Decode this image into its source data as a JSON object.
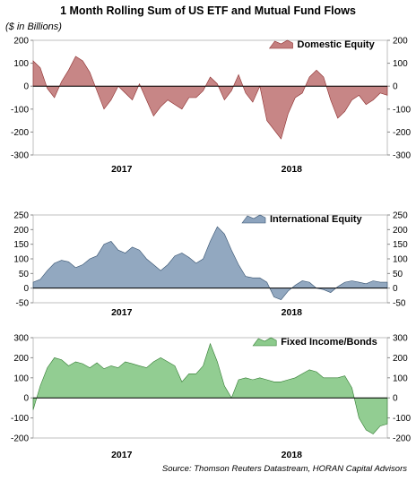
{
  "title": "1 Month Rolling Sum of US ETF and Mutual Fund Flows",
  "subtitle": "($ in Billions)",
  "source": "Source: Thomson Reuters Datastream, HORAN Capital Advisors",
  "chart_data": [
    {
      "type": "area",
      "series": [
        {
          "name": "Domestic Equity",
          "color": "#c47f7f",
          "x": [
            0,
            2,
            4,
            6,
            8,
            10,
            12,
            14,
            16,
            18,
            20,
            22,
            24,
            26,
            28,
            30,
            32,
            34,
            36,
            38,
            40,
            42,
            44,
            46,
            48,
            50,
            52,
            54,
            56,
            58,
            60,
            62,
            64,
            66,
            68,
            70,
            72,
            74,
            76,
            78,
            80,
            82,
            84,
            86,
            88,
            90,
            92,
            94,
            96,
            98,
            100
          ],
          "values": [
            110,
            80,
            -10,
            -50,
            20,
            70,
            130,
            110,
            60,
            -20,
            -100,
            -60,
            0,
            -30,
            -60,
            10,
            -60,
            -130,
            -90,
            -60,
            -80,
            -100,
            -50,
            -50,
            -20,
            40,
            10,
            -60,
            -20,
            50,
            -30,
            -70,
            0,
            -150,
            -190,
            -230,
            -120,
            -50,
            -30,
            40,
            70,
            40,
            -60,
            -140,
            -110,
            -60,
            -40,
            -80,
            -60,
            -30,
            -40
          ]
        }
      ],
      "x_ticks": [
        {
          "label": "2017",
          "x": 25
        },
        {
          "label": "2018",
          "x": 73
        }
      ],
      "ylim": [
        -300,
        200
      ],
      "yticks": [
        200,
        100,
        0,
        -100,
        -200,
        -300
      ],
      "legend_placement": "top-right",
      "grid": false
    },
    {
      "type": "area",
      "series": [
        {
          "name": "International Equity",
          "color": "#8ca3bd",
          "x": [
            0,
            2,
            4,
            6,
            8,
            10,
            12,
            14,
            16,
            18,
            20,
            22,
            24,
            26,
            28,
            30,
            32,
            34,
            36,
            38,
            40,
            42,
            44,
            46,
            48,
            50,
            52,
            54,
            56,
            58,
            60,
            62,
            64,
            66,
            68,
            70,
            72,
            74,
            76,
            78,
            80,
            82,
            84,
            86,
            88,
            90,
            92,
            94,
            96,
            98,
            100
          ],
          "values": [
            20,
            30,
            60,
            85,
            95,
            90,
            70,
            80,
            100,
            110,
            150,
            160,
            130,
            120,
            140,
            130,
            100,
            80,
            60,
            80,
            110,
            120,
            105,
            85,
            100,
            160,
            210,
            185,
            130,
            80,
            40,
            35,
            35,
            20,
            -30,
            -40,
            -10,
            10,
            25,
            20,
            0,
            -5,
            -15,
            5,
            20,
            25,
            20,
            15,
            25,
            20,
            20
          ]
        }
      ],
      "x_ticks": [
        {
          "label": "2017",
          "x": 25
        },
        {
          "label": "2018",
          "x": 73
        }
      ],
      "ylim": [
        -50,
        250
      ],
      "yticks": [
        250,
        200,
        150,
        100,
        50,
        0,
        -50
      ],
      "legend_placement": "top-right",
      "grid": false
    },
    {
      "type": "area",
      "series": [
        {
          "name": "Fixed Income/Bonds",
          "color": "#8cca8c",
          "x": [
            0,
            2,
            4,
            6,
            8,
            10,
            12,
            14,
            16,
            18,
            20,
            22,
            24,
            26,
            28,
            30,
            32,
            34,
            36,
            38,
            40,
            42,
            44,
            46,
            48,
            50,
            52,
            54,
            56,
            58,
            60,
            62,
            64,
            66,
            68,
            70,
            72,
            74,
            76,
            78,
            80,
            82,
            84,
            86,
            88,
            90,
            92,
            94,
            96,
            98,
            100
          ],
          "values": [
            -60,
            60,
            150,
            200,
            190,
            160,
            180,
            170,
            150,
            175,
            145,
            160,
            150,
            180,
            170,
            160,
            150,
            180,
            200,
            180,
            160,
            80,
            120,
            120,
            160,
            270,
            180,
            60,
            0,
            90,
            100,
            90,
            100,
            90,
            80,
            80,
            90,
            100,
            120,
            140,
            130,
            100,
            100,
            100,
            110,
            50,
            -100,
            -160,
            -180,
            -140,
            -130
          ]
        }
      ],
      "x_ticks": [
        {
          "label": "2017",
          "x": 25
        },
        {
          "label": "2018",
          "x": 73
        }
      ],
      "ylim": [
        -200,
        300
      ],
      "yticks": [
        300,
        200,
        100,
        0,
        -100,
        -200
      ],
      "legend_placement": "top-right",
      "grid": false
    }
  ]
}
